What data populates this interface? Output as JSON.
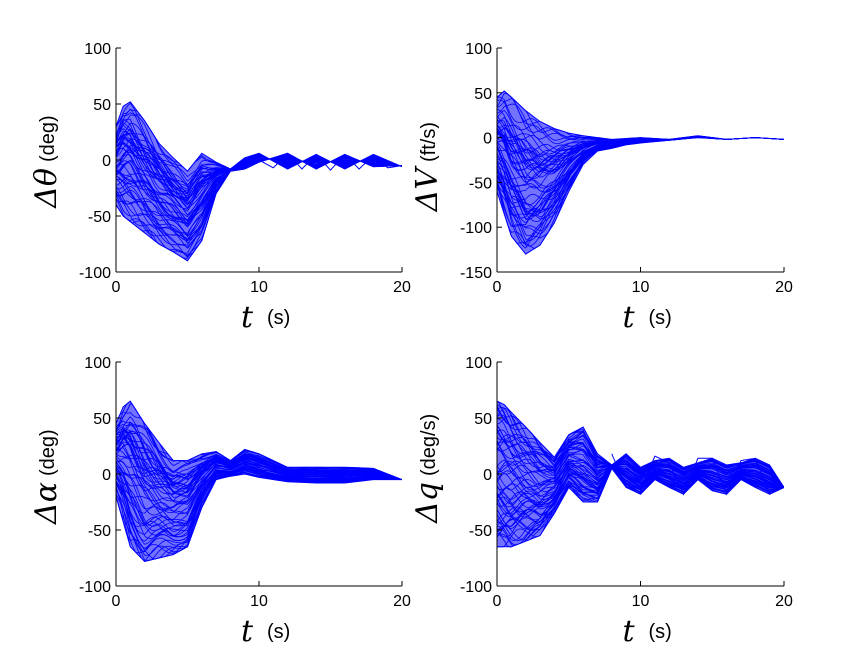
{
  "colors": {
    "series": "#0000ff",
    "axes": "#000000",
    "background": "#ffffff"
  },
  "chart_data": [
    {
      "type": "line",
      "id": "theta",
      "ylabel_symbol": "Δθ",
      "ylabel_unit": "(deg)",
      "xlabel_symbol": "t",
      "xlabel_unit": "(s)",
      "xlim": [
        0,
        20
      ],
      "ylim": [
        -100,
        100
      ],
      "xticks": [
        "0",
        "10",
        "20"
      ],
      "yticks": [
        "-100",
        "-50",
        "0",
        "50",
        "100"
      ],
      "grid": false,
      "series": [
        {
          "name": "upper-envelope",
          "x": [
            0,
            0.5,
            1,
            2,
            3,
            4,
            4.5,
            5,
            5.5,
            6,
            7,
            8,
            9,
            10,
            12,
            14,
            16,
            18,
            20
          ],
          "y": [
            30,
            48,
            52,
            35,
            15,
            2,
            -4,
            -10,
            -2,
            6,
            -2,
            -8,
            2,
            6,
            -8,
            5,
            -8,
            5,
            -6
          ]
        },
        {
          "name": "lower-envelope",
          "x": [
            0,
            0.5,
            1,
            2,
            3,
            4,
            5,
            6,
            7,
            8,
            9,
            10,
            12,
            14,
            16,
            18,
            20
          ],
          "y": [
            -40,
            -50,
            -55,
            -65,
            -75,
            -82,
            -90,
            -72,
            -30,
            -10,
            -8,
            -2,
            6,
            -8,
            5,
            -6,
            -5
          ]
        },
        {
          "name": "steady-oscillation",
          "x": [
            10,
            11,
            12,
            13,
            14,
            15,
            16,
            17,
            18,
            19,
            20
          ],
          "y": [
            0,
            -7,
            6,
            -8,
            5,
            -9,
            5,
            -8,
            4,
            -7,
            -5
          ]
        }
      ]
    },
    {
      "type": "line",
      "id": "velocity",
      "ylabel_symbol": "ΔV",
      "ylabel_unit": "(ft/s)",
      "xlabel_symbol": "t",
      "xlabel_unit": "(s)",
      "xlim": [
        0,
        20
      ],
      "ylim": [
        -150,
        100
      ],
      "xticks": [
        "0",
        "10",
        "20"
      ],
      "yticks": [
        "-150",
        "-100",
        "-50",
        "0",
        "50",
        "100"
      ],
      "grid": false,
      "series": [
        {
          "name": "upper-envelope",
          "x": [
            0,
            0.5,
            1,
            2,
            3,
            4,
            5,
            6,
            7,
            8,
            10,
            12,
            14,
            16,
            18,
            20
          ],
          "y": [
            45,
            52,
            45,
            30,
            18,
            10,
            5,
            2,
            0,
            -2,
            0,
            -2,
            2,
            -2,
            0,
            -2
          ]
        },
        {
          "name": "lower-envelope",
          "x": [
            0,
            1,
            2,
            3,
            4,
            5,
            6,
            7,
            8,
            9,
            10,
            12,
            14,
            16,
            18,
            20
          ],
          "y": [
            -60,
            -110,
            -130,
            -120,
            -95,
            -60,
            -30,
            -15,
            -12,
            -8,
            -6,
            -3,
            0,
            -2,
            0,
            -2
          ]
        }
      ]
    },
    {
      "type": "line",
      "id": "alpha",
      "ylabel_symbol": "Δα",
      "ylabel_unit": "(deg)",
      "xlabel_symbol": "t",
      "xlabel_unit": "(s)",
      "xlim": [
        0,
        20
      ],
      "ylim": [
        -100,
        100
      ],
      "xticks": [
        "0",
        "10",
        "20"
      ],
      "yticks": [
        "-100",
        "-50",
        "0",
        "50",
        "100"
      ],
      "grid": false,
      "series": [
        {
          "name": "upper-envelope",
          "x": [
            0,
            0.5,
            1,
            2,
            3,
            4,
            5,
            6,
            7,
            8,
            9,
            10,
            12,
            14,
            16,
            18,
            20
          ],
          "y": [
            45,
            60,
            65,
            45,
            28,
            12,
            12,
            18,
            20,
            12,
            22,
            18,
            6,
            6,
            6,
            5,
            -5
          ]
        },
        {
          "name": "lower-envelope",
          "x": [
            0,
            1,
            2,
            3,
            4,
            5,
            6,
            7,
            8,
            9,
            10,
            12,
            14,
            16,
            18,
            20
          ],
          "y": [
            -20,
            -65,
            -78,
            -75,
            -72,
            -65,
            -30,
            -5,
            -2,
            0,
            -3,
            -7,
            -8,
            -8,
            -5,
            -5
          ]
        }
      ]
    },
    {
      "type": "line",
      "id": "pitch-rate",
      "ylabel_symbol": "Δq",
      "ylabel_unit": "(deg/s)",
      "xlabel_symbol": "t",
      "xlabel_unit": "(s)",
      "xlim": [
        0,
        20
      ],
      "ylim": [
        -100,
        100
      ],
      "xticks": [
        "0",
        "10",
        "20"
      ],
      "yticks": [
        "-100",
        "-50",
        "0",
        "50",
        "100"
      ],
      "grid": false,
      "series": [
        {
          "name": "upper-envelope",
          "x": [
            0,
            0.5,
            1,
            2,
            3,
            4,
            5,
            6,
            7,
            8,
            9,
            10,
            11,
            12,
            13,
            14,
            15,
            16,
            17,
            18,
            19,
            20
          ],
          "y": [
            65,
            62,
            55,
            42,
            28,
            15,
            35,
            42,
            18,
            8,
            18,
            6,
            12,
            14,
            6,
            10,
            14,
            8,
            10,
            14,
            8,
            -12
          ]
        },
        {
          "name": "lower-envelope",
          "x": [
            0,
            1,
            2,
            3,
            4,
            5,
            6,
            7,
            8,
            9,
            10,
            11,
            12,
            13,
            14,
            15,
            16,
            17,
            18,
            19,
            20
          ],
          "y": [
            -65,
            -65,
            -60,
            -55,
            -35,
            -12,
            -25,
            -25,
            5,
            -12,
            -18,
            -5,
            -12,
            -18,
            -5,
            -15,
            -18,
            -5,
            -12,
            -18,
            -12
          ]
        },
        {
          "name": "steady-oscillation",
          "x": [
            8,
            9,
            10,
            11,
            12,
            13,
            14,
            15,
            16,
            17,
            18,
            19,
            20
          ],
          "y": [
            18,
            -12,
            -16,
            16,
            10,
            -18,
            14,
            14,
            -18,
            12,
            14,
            -18,
            -12
          ]
        }
      ]
    }
  ]
}
